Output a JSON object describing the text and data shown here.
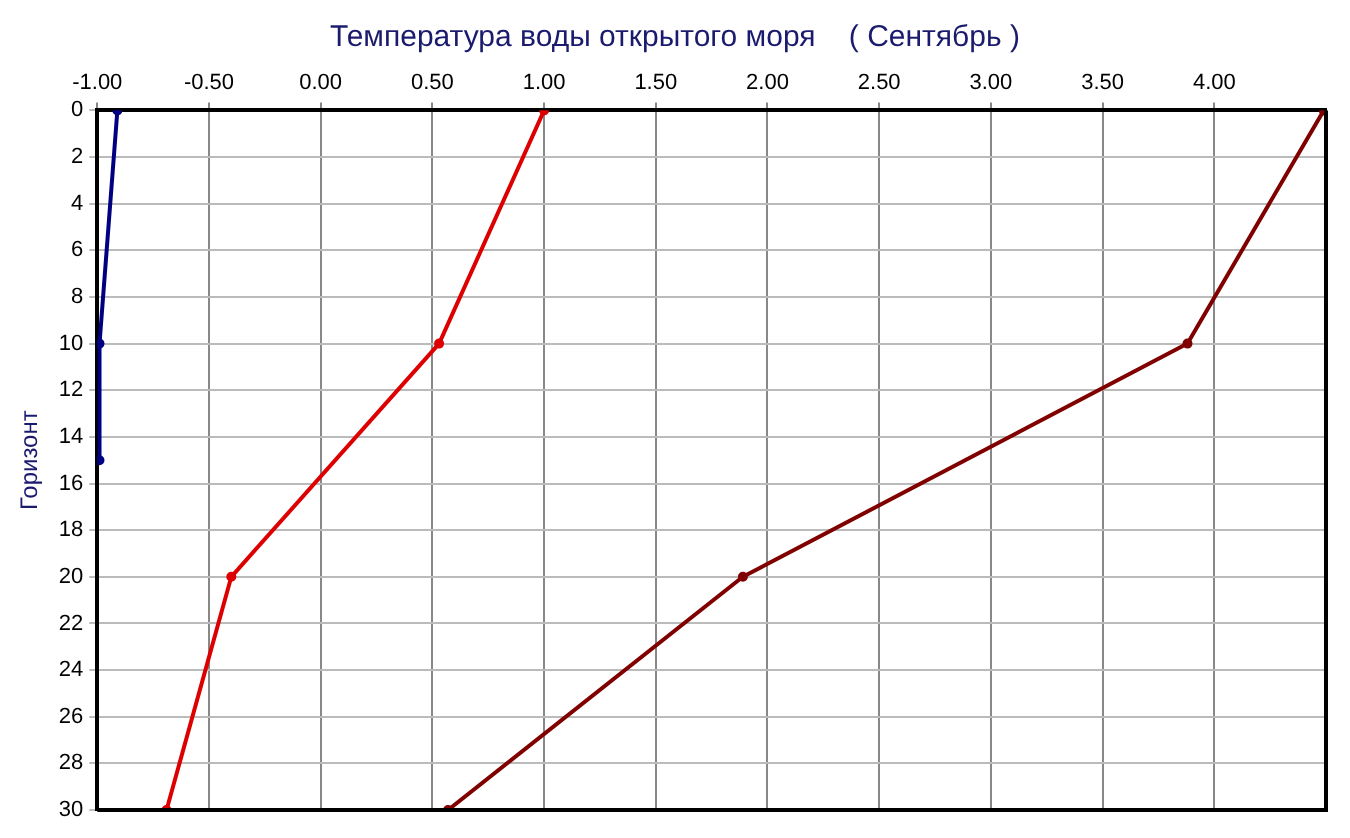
{
  "chart_data": {
    "type": "line",
    "title": "Температура воды открытого моря    ( Сентябрь )",
    "ylabel": "Горизонт",
    "series": [
      {
        "color": "#000080",
        "x": [
          -0.91,
          -0.99,
          -0.99
        ],
        "values": [
          0,
          10,
          15
        ]
      },
      {
        "color": "#dd0000",
        "x": [
          1.0,
          0.53,
          -0.4,
          -0.69
        ],
        "values": [
          0,
          10,
          20,
          30
        ]
      },
      {
        "color": "#800000",
        "x": [
          4.49,
          3.88,
          1.89,
          0.57
        ],
        "values": [
          0,
          10,
          20,
          30
        ]
      }
    ],
    "xlim": [
      -1,
      4.5
    ],
    "xticks": [
      {
        "value": -1,
        "label": "-1.00"
      },
      {
        "value": -0.5,
        "label": "-0.50"
      },
      {
        "value": 0,
        "label": "0.00"
      },
      {
        "value": 0.5,
        "label": "0.50"
      },
      {
        "value": 1,
        "label": "1.00"
      },
      {
        "value": 1.5,
        "label": "1.50"
      },
      {
        "value": 2,
        "label": "2.00"
      },
      {
        "value": 2.5,
        "label": "2.50"
      },
      {
        "value": 3,
        "label": "3.00"
      },
      {
        "value": 3.5,
        "label": "3.50"
      },
      {
        "value": 4,
        "label": "4.00"
      }
    ],
    "ylim": [
      30,
      0
    ],
    "yticks": [
      0,
      2,
      4,
      6,
      8,
      10,
      12,
      14,
      16,
      18,
      20,
      22,
      24,
      26,
      28,
      30
    ],
    "grid": true,
    "legend": false,
    "marker": "circle",
    "line_style": "solid"
  }
}
